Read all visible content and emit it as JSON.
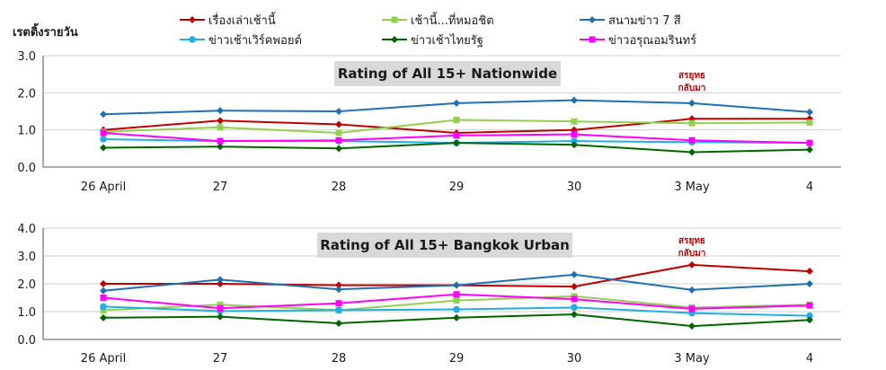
{
  "y_unit_label": "เรตติ้งรายวัน",
  "chart_data": [
    {
      "type": "line",
      "title": "Rating of All 15+ Nationwide",
      "ylabel": "เรตติ้งรายวัน",
      "ylim": [
        0,
        3
      ],
      "yticks": [
        "0.0",
        "1.0",
        "2.0",
        "3.0"
      ],
      "grid": "horizontal",
      "categories": [
        "26 April",
        "27",
        "28",
        "29",
        "30",
        "3 May",
        "4"
      ],
      "annotation": {
        "lines": [
          "สรยุทธ",
          "กลับมา"
        ],
        "category": "3 May"
      },
      "series": [
        {
          "name": "เรื่องเล่าเช้านี้",
          "color": "#c00000",
          "marker": "diamond",
          "values": [
            1.0,
            1.25,
            1.15,
            0.92,
            1.0,
            1.3,
            1.3
          ]
        },
        {
          "name": "เช้านี้...ที่หมอชิต",
          "color": "#92d050",
          "marker": "square",
          "values": [
            0.95,
            1.07,
            0.92,
            1.27,
            1.23,
            1.18,
            1.2
          ]
        },
        {
          "name": "สนามข่าว 7 สี",
          "color": "#1f6fb5",
          "marker": "diamond",
          "values": [
            1.42,
            1.52,
            1.5,
            1.72,
            1.8,
            1.72,
            1.48
          ]
        },
        {
          "name": "ข่าวเช้าเวิร์คพอยต์",
          "color": "#22aee0",
          "marker": "circle",
          "values": [
            0.75,
            0.7,
            0.7,
            0.65,
            0.7,
            0.67,
            0.65
          ]
        },
        {
          "name": "ข่าวเช้าไทยรัฐ",
          "color": "#006400",
          "marker": "diamond",
          "values": [
            0.52,
            0.55,
            0.5,
            0.65,
            0.6,
            0.4,
            0.47
          ]
        },
        {
          "name": "ข่าวอรุณอมรินทร์",
          "color": "#ff00ff",
          "marker": "square",
          "values": [
            0.92,
            0.7,
            0.72,
            0.85,
            0.88,
            0.72,
            0.65
          ]
        }
      ]
    },
    {
      "type": "line",
      "title": "Rating of All 15+ Bangkok Urban",
      "ylim": [
        0,
        4
      ],
      "yticks": [
        "0.0",
        "1.0",
        "2.0",
        "3.0",
        "4.0"
      ],
      "grid": "horizontal",
      "categories": [
        "26 April",
        "27",
        "28",
        "29",
        "30",
        "3 May",
        "4"
      ],
      "annotation": {
        "lines": [
          "สรยุทธ",
          "กลับมา"
        ],
        "category": "3 May"
      },
      "series": [
        {
          "name": "เรื่องเล่าเช้านี้",
          "color": "#c00000",
          "marker": "diamond",
          "values": [
            2.0,
            2.0,
            1.95,
            1.95,
            1.9,
            2.68,
            2.45
          ]
        },
        {
          "name": "เช้านี้...ที่หมอชิต",
          "color": "#92d050",
          "marker": "square",
          "values": [
            1.05,
            1.25,
            1.05,
            1.4,
            1.55,
            1.15,
            1.25
          ]
        },
        {
          "name": "สนามข่าว 7 สี",
          "color": "#1f6fb5",
          "marker": "diamond",
          "values": [
            1.75,
            2.15,
            1.8,
            1.95,
            2.33,
            1.78,
            2.0
          ]
        },
        {
          "name": "ข่าวเช้าเวิร์คพอยต์",
          "color": "#22aee0",
          "marker": "circle",
          "values": [
            1.18,
            1.02,
            1.05,
            1.08,
            1.15,
            0.95,
            0.85
          ]
        },
        {
          "name": "ข่าวเช้าไทยรัฐ",
          "color": "#006400",
          "marker": "diamond",
          "values": [
            0.78,
            0.82,
            0.58,
            0.78,
            0.9,
            0.48,
            0.7
          ]
        },
        {
          "name": "ข่าวอรุณอมรินทร์",
          "color": "#ff00ff",
          "marker": "square",
          "values": [
            1.5,
            1.12,
            1.3,
            1.62,
            1.45,
            1.1,
            1.22
          ]
        }
      ]
    }
  ]
}
